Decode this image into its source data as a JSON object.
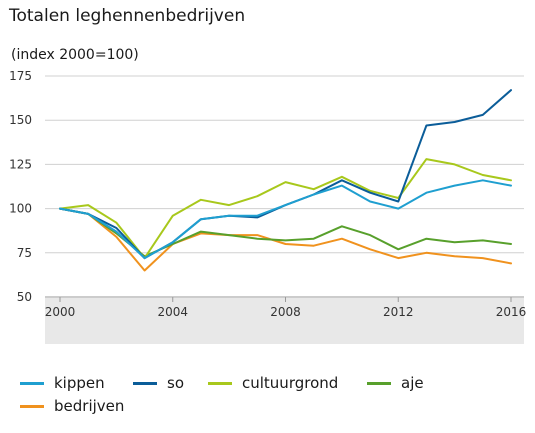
{
  "chart_data": {
    "type": "line",
    "title": "Totalen leghennenbedrijven",
    "ylabel": "(index 2000=100)",
    "xlabel": "",
    "x": [
      2000,
      2001,
      2002,
      2003,
      2004,
      2005,
      2006,
      2007,
      2008,
      2009,
      2010,
      2011,
      2012,
      2013,
      2014,
      2015,
      2016
    ],
    "xticks": [
      2000,
      2004,
      2008,
      2012,
      2016
    ],
    "yticks": [
      50,
      75,
      100,
      125,
      150,
      175
    ],
    "ylim": [
      50,
      175
    ],
    "xlim": [
      2000,
      2016
    ],
    "grid": "horizontal",
    "legend_position": "bottom",
    "series": [
      {
        "name": "kippen",
        "color": "#1f9fd0",
        "values": [
          100,
          97,
          87,
          72,
          81,
          94,
          96,
          96,
          102,
          108,
          113,
          104,
          100,
          109,
          113,
          116,
          113
        ]
      },
      {
        "name": "so",
        "color": "#0b5d99",
        "values": [
          100,
          97,
          89,
          72,
          81,
          94,
          96,
          95,
          102,
          108,
          116,
          109,
          104,
          147,
          149,
          153,
          167
        ]
      },
      {
        "name": "cultuurgrond",
        "color": "#a8c81c",
        "values": [
          100,
          102,
          92,
          72,
          96,
          105,
          102,
          107,
          115,
          111,
          118,
          110,
          106,
          128,
          125,
          119,
          116
        ]
      },
      {
        "name": "aje",
        "color": "#58a02c",
        "values": [
          100,
          97,
          86,
          73,
          80,
          87,
          85,
          83,
          82,
          83,
          90,
          85,
          77,
          83,
          81,
          82,
          80
        ]
      },
      {
        "name": "bedrijven",
        "color": "#f0921e",
        "values": [
          100,
          97,
          84,
          65,
          80,
          86,
          85,
          85,
          80,
          79,
          83,
          77,
          72,
          75,
          73,
          72,
          69
        ]
      }
    ]
  }
}
